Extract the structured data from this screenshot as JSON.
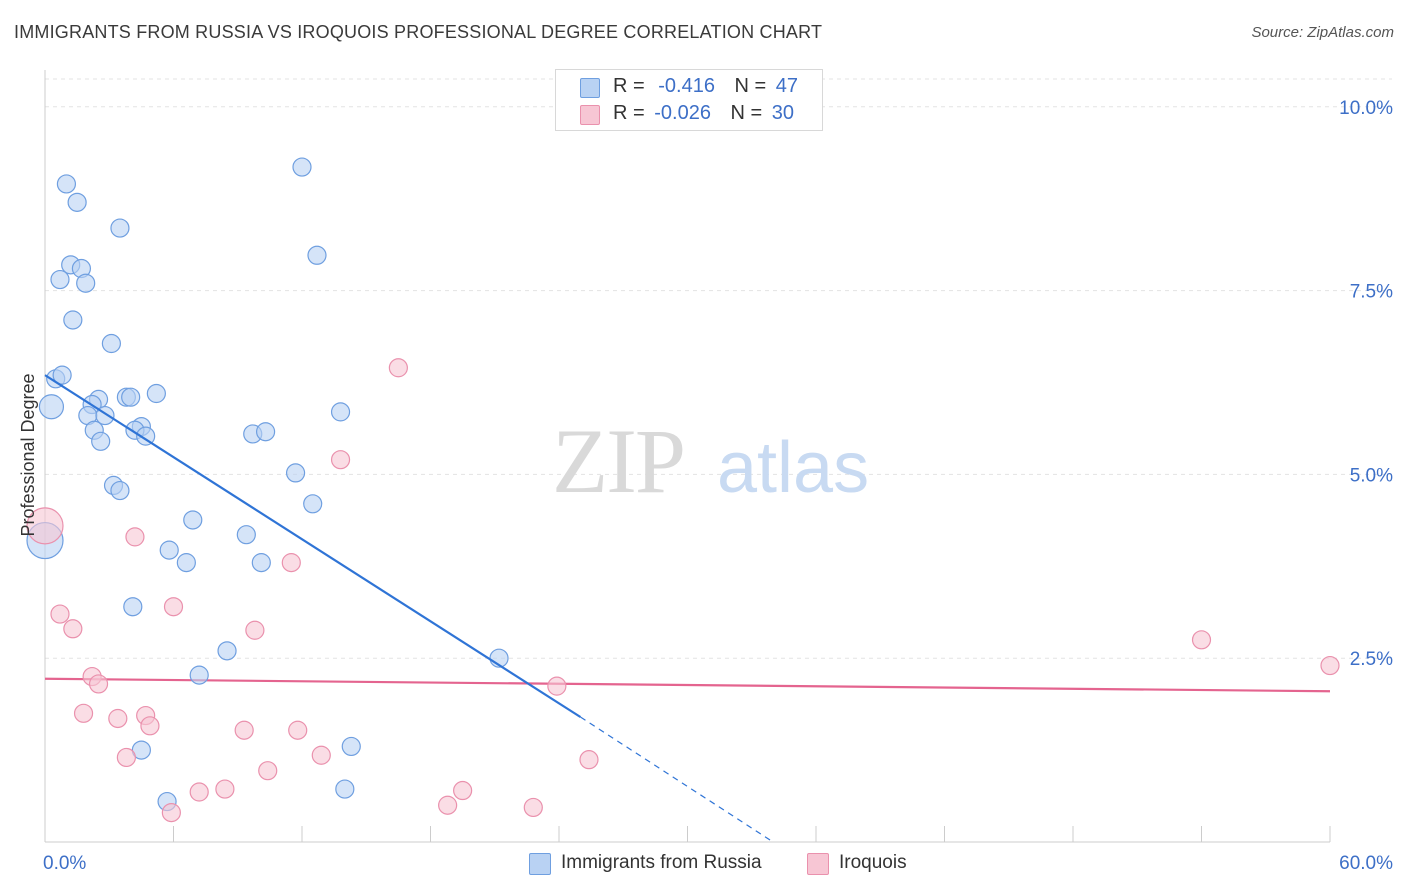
{
  "title": "IMMIGRANTS FROM RUSSIA VS IROQUOIS PROFESSIONAL DEGREE CORRELATION CHART",
  "source": "Source: ZipAtlas.com",
  "watermark": {
    "zip": "ZIP",
    "atlas": "atlas"
  },
  "legend": {
    "russia": {
      "r_label": "R =",
      "r_value": "-0.416",
      "n_label": "N =",
      "n_value": "47"
    },
    "iroquois": {
      "r_label": "R =",
      "r_value": "-0.026",
      "n_label": "N =",
      "n_value": "30"
    }
  },
  "colors": {
    "russia_fill": "#b9d2f3",
    "russia_stroke": "#6f9fe0",
    "russia_line": "#2f74d6",
    "iroquois_fill": "#f7c6d4",
    "iroquois_stroke": "#ea91ad",
    "iroquois_line": "#e4648f",
    "axis_label": "#3d6fc7",
    "grid": "#e3e3e3"
  },
  "chart_data": {
    "type": "scatter",
    "title": "IMMIGRANTS FROM RUSSIA VS IROQUOIS PROFESSIONAL DEGREE CORRELATION CHART",
    "xlabel": "",
    "ylabel": "Professional Degree",
    "xlim": [
      0,
      60
    ],
    "ylim": [
      0,
      10.5
    ],
    "x_tick_labels": [
      "0.0%",
      "60.0%"
    ],
    "y_ticks": [
      2.5,
      5.0,
      7.5,
      10.0
    ],
    "y_tick_labels": [
      "2.5%",
      "5.0%",
      "7.5%",
      "10.0%"
    ],
    "series": [
      {
        "name": "Immigrants from Russia",
        "key": "russia",
        "points": [
          [
            1.0,
            8.95
          ],
          [
            1.5,
            8.7
          ],
          [
            3.5,
            8.35
          ],
          [
            1.2,
            7.85
          ],
          [
            1.7,
            7.8
          ],
          [
            0.7,
            7.65
          ],
          [
            1.9,
            7.6
          ],
          [
            1.3,
            7.1
          ],
          [
            3.1,
            6.78
          ],
          [
            0.5,
            6.3
          ],
          [
            0.8,
            6.35
          ],
          [
            5.2,
            6.1
          ],
          [
            2.5,
            6.02
          ],
          [
            3.8,
            6.05
          ],
          [
            4.0,
            6.05
          ],
          [
            2.2,
            5.95
          ],
          [
            0.3,
            5.92
          ],
          [
            2.0,
            5.8
          ],
          [
            2.8,
            5.8
          ],
          [
            4.5,
            5.65
          ],
          [
            2.3,
            5.6
          ],
          [
            4.2,
            5.6
          ],
          [
            2.6,
            5.45
          ],
          [
            4.7,
            5.52
          ],
          [
            3.2,
            4.85
          ],
          [
            3.5,
            4.78
          ],
          [
            6.9,
            4.38
          ],
          [
            5.8,
            3.97
          ],
          [
            6.6,
            3.8
          ],
          [
            9.4,
            4.18
          ],
          [
            10.1,
            3.8
          ],
          [
            4.1,
            3.2
          ],
          [
            8.5,
            2.6
          ],
          [
            7.2,
            2.27
          ],
          [
            4.5,
            1.25
          ],
          [
            5.7,
            0.55
          ],
          [
            12.7,
            7.98
          ],
          [
            12.0,
            9.18
          ],
          [
            13.8,
            5.85
          ],
          [
            11.7,
            5.02
          ],
          [
            12.5,
            4.6
          ],
          [
            14.3,
            1.3
          ],
          [
            14.0,
            0.72
          ],
          [
            9.7,
            5.55
          ],
          [
            10.3,
            5.58
          ],
          [
            21.2,
            2.5
          ],
          [
            0.0,
            4.1
          ]
        ],
        "sizes": [
          0,
          0,
          0,
          0,
          0,
          0,
          0,
          0,
          0,
          0,
          0,
          0,
          0,
          0,
          0,
          0,
          1,
          0,
          0,
          0,
          0,
          0,
          0,
          0,
          0,
          0,
          0,
          0,
          0,
          0,
          0,
          0,
          0,
          0,
          0,
          0,
          0,
          0,
          0,
          0,
          0,
          0,
          0,
          0,
          0,
          0,
          2
        ],
        "trend": {
          "x": [
            0,
            25
          ],
          "y": [
            6.35,
            1.7
          ],
          "extend_to": [
            34,
            0
          ]
        }
      },
      {
        "name": "Iroquois",
        "key": "iroquois",
        "points": [
          [
            0.0,
            4.3
          ],
          [
            0.7,
            3.1
          ],
          [
            1.3,
            2.9
          ],
          [
            2.2,
            2.25
          ],
          [
            2.5,
            2.15
          ],
          [
            1.8,
            1.75
          ],
          [
            3.4,
            1.68
          ],
          [
            3.8,
            1.15
          ],
          [
            4.2,
            4.15
          ],
          [
            4.7,
            1.72
          ],
          [
            4.9,
            1.58
          ],
          [
            5.9,
            0.4
          ],
          [
            6.0,
            3.2
          ],
          [
            7.2,
            0.68
          ],
          [
            8.4,
            0.72
          ],
          [
            9.3,
            1.52
          ],
          [
            9.8,
            2.88
          ],
          [
            10.4,
            0.97
          ],
          [
            11.5,
            3.8
          ],
          [
            11.8,
            1.52
          ],
          [
            12.9,
            1.18
          ],
          [
            13.8,
            5.2
          ],
          [
            16.5,
            6.45
          ],
          [
            18.8,
            0.5
          ],
          [
            19.5,
            0.7
          ],
          [
            22.8,
            0.47
          ],
          [
            23.9,
            2.12
          ],
          [
            25.4,
            1.12
          ],
          [
            54.0,
            2.75
          ],
          [
            60.0,
            2.4
          ]
        ],
        "sizes": [
          2,
          0,
          0,
          0,
          0,
          0,
          0,
          0,
          0,
          0,
          0,
          0,
          0,
          0,
          0,
          0,
          0,
          0,
          0,
          0,
          0,
          0,
          0,
          0,
          0,
          0,
          0,
          0,
          0,
          0
        ],
        "trend": {
          "x": [
            0,
            60
          ],
          "y": [
            2.22,
            2.05
          ]
        }
      }
    ]
  },
  "bottom_legend": {
    "russia": "Immigrants from Russia",
    "iroquois": "Iroquois"
  }
}
